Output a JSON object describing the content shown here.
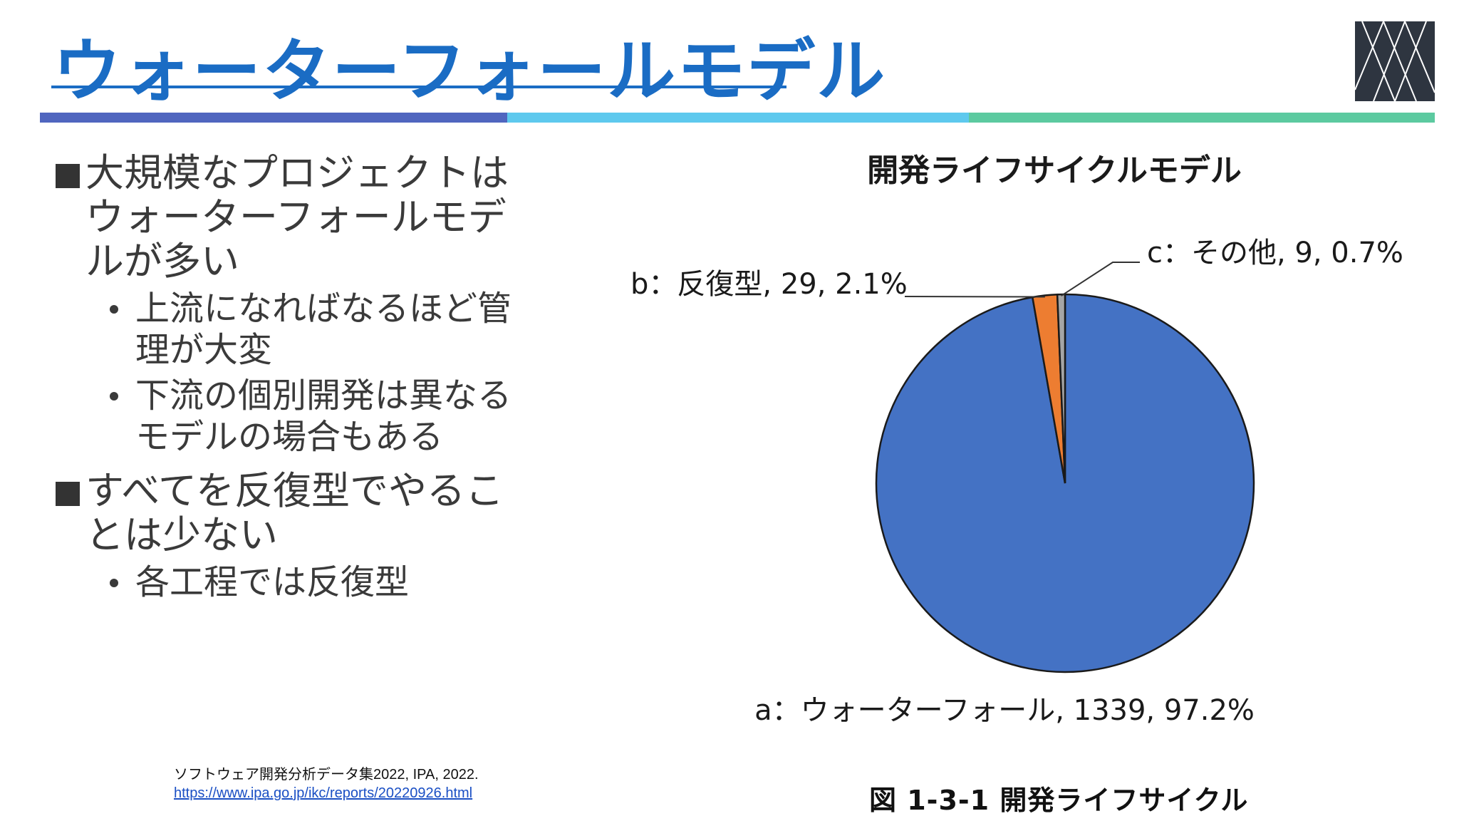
{
  "slide": {
    "title": "ウォーターフォールモデル"
  },
  "bullets": [
    {
      "level": 1,
      "text": "大規模なプロジェクトはウォーターフォールモデルが多い",
      "lines": [
        "大規模なプロジェクトは",
        "ウォーターフォールモデ",
        "ルが多い"
      ]
    },
    {
      "level": 2,
      "text": "上流になればなるほど管理が大変",
      "lines": [
        "上流になればなるほど管",
        "理が大変"
      ]
    },
    {
      "level": 2,
      "text": "下流の個別開発は異なるモデルの場合もある",
      "lines": [
        "下流の個別開発は異なる",
        "モデルの場合もある"
      ]
    },
    {
      "level": 1,
      "text": "すべてを反復型でやることは少ない",
      "lines": [
        "すべてを反復型でやるこ",
        "とは少ない"
      ]
    },
    {
      "level": 2,
      "text": "各工程では反復型",
      "lines": [
        "各工程では反復型"
      ]
    }
  ],
  "source": {
    "citation": "ソフトウェア開発分析データ集2022, IPA, 2022.",
    "url": "https://www.ipa.go.jp/ikc/reports/20220926.html"
  },
  "figure_caption": "図 1-3-1  開発ライフサイクル",
  "colors": {
    "title": "#1a6cc4",
    "band": [
      "#5066bf",
      "#5ec9ee",
      "#5ccaa0"
    ],
    "slices": [
      "#4472c4",
      "#ed7d31",
      "#a5a5a5"
    ]
  },
  "chart_data": {
    "type": "pie",
    "title": "開発ライフサイクルモデル",
    "categories": [
      "a：ウォーターフォール",
      "b：反復型",
      "c：その他"
    ],
    "values": [
      1339,
      29,
      9
    ],
    "percentages": [
      97.2,
      2.1,
      0.7
    ],
    "labels": [
      "a：ウォーターフォール, 1339, 97.2%",
      "b：反復型, 29, 2.1%",
      "c：その他, 9, 0.7%"
    ],
    "legend": "none"
  }
}
